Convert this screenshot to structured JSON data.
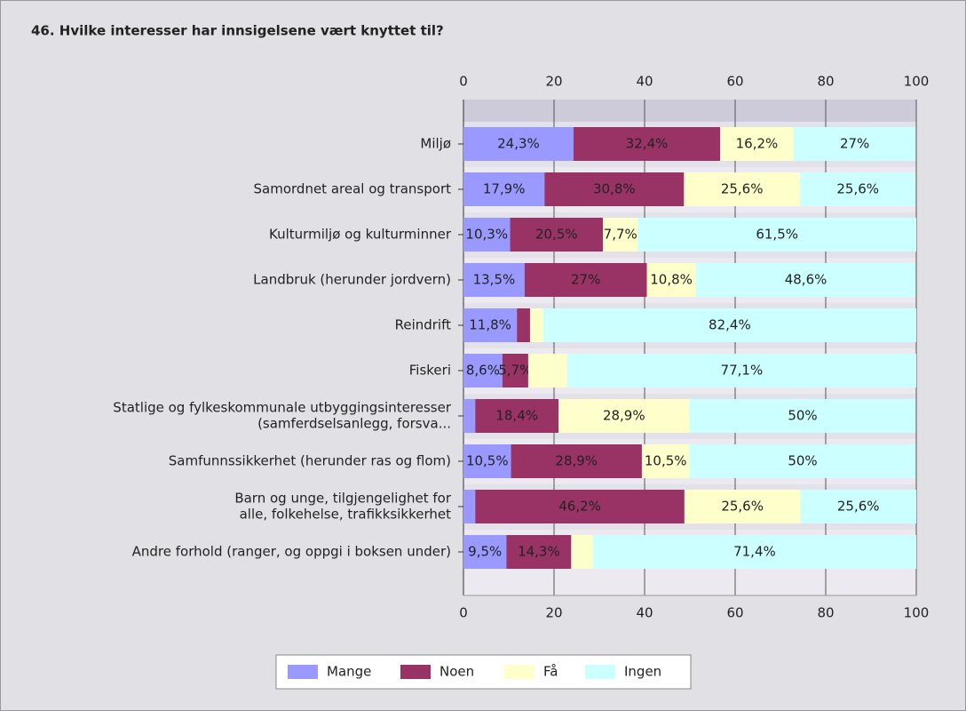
{
  "chart_data": {
    "type": "stacked-bar",
    "orientation": "horizontal",
    "title": "46. Hvilke interesser har innsigelsene vært knyttet til?",
    "categories": [
      [
        "Miljø"
      ],
      [
        "Samordnet areal og transport"
      ],
      [
        "Kulturmiljø og kulturminner"
      ],
      [
        "Landbruk (herunder jordvern)"
      ],
      [
        "Reindrift"
      ],
      [
        "Fiskeri"
      ],
      [
        "Statlige og fylkeskommunale utbyggingsinteresser",
        "(samferdselsanlegg, forsva..."
      ],
      [
        "Samfunnssikkerhet (herunder ras og flom)"
      ],
      [
        "Barn og unge, tilgjengelighet for",
        "alle, folkehelse, trafikksikkerhet"
      ],
      [
        "Andre forhold (ranger, og oppgi i boksen under)"
      ]
    ],
    "series": [
      {
        "name": "Mange",
        "color": "#9999ff",
        "values": [
          24.3,
          17.9,
          10.3,
          13.5,
          11.8,
          8.6,
          2.6,
          10.5,
          2.6,
          9.5
        ],
        "value_labels": [
          "24,3%",
          "17,9%",
          "10,3%",
          "13,5%",
          "11,8%",
          "8,6%",
          null,
          "10,5%",
          null,
          "9,5%"
        ]
      },
      {
        "name": "Noen",
        "color": "#993366",
        "values": [
          32.4,
          30.8,
          20.5,
          27,
          2.9,
          5.7,
          18.4,
          28.9,
          46.2,
          14.3
        ],
        "value_labels": [
          "32,4%",
          "30,8%",
          "20,5%",
          "27%",
          null,
          "5,7%",
          "18,4%",
          "28,9%",
          "46,2%",
          "14,3%"
        ]
      },
      {
        "name": "Få",
        "color": "#ffffcc",
        "values": [
          16.2,
          25.6,
          7.7,
          10.8,
          2.9,
          8.6,
          28.9,
          10.5,
          25.6,
          4.8
        ],
        "value_labels": [
          "16,2%",
          "25,6%",
          "7,7%",
          "10,8%",
          null,
          null,
          "28,9%",
          "10,5%",
          "25,6%",
          null
        ]
      },
      {
        "name": "Ingen",
        "color": "#ccffff",
        "values": [
          27,
          25.6,
          61.5,
          48.6,
          82.4,
          77.1,
          50,
          50,
          25.6,
          71.4
        ],
        "value_labels": [
          "27%",
          "25,6%",
          "61,5%",
          "48,6%",
          "82,4%",
          "77,1%",
          "50%",
          "50%",
          "25,6%",
          "71,4%"
        ]
      }
    ],
    "xlim": [
      0,
      100
    ],
    "xticks": [
      0,
      20,
      40,
      60,
      80,
      100
    ],
    "grid": true
  }
}
